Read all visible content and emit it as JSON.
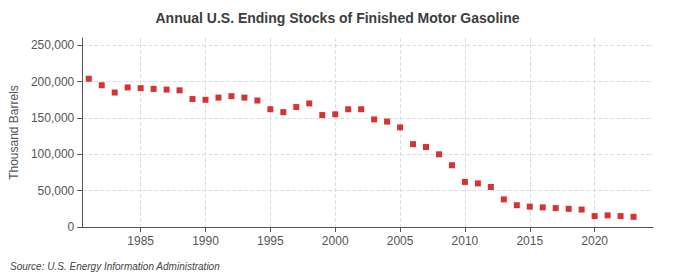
{
  "chart_data": {
    "type": "scatter",
    "title": "Annual U.S. Ending Stocks of Finished Motor Gasoline",
    "ylabel": "Thousand Barrels",
    "annotation": "Source: U.S. Energy Information Administration",
    "x": [
      1981,
      1982,
      1983,
      1984,
      1985,
      1986,
      1987,
      1988,
      1989,
      1990,
      1991,
      1992,
      1993,
      1994,
      1995,
      1996,
      1997,
      1998,
      1999,
      2000,
      2001,
      2002,
      2003,
      2004,
      2005,
      2006,
      2007,
      2008,
      2009,
      2010,
      2011,
      2012,
      2013,
      2014,
      2015,
      2016,
      2017,
      2018,
      2019,
      2020,
      2021,
      2022,
      2023
    ],
    "values": [
      204000,
      195000,
      185000,
      192000,
      191000,
      190000,
      189000,
      188000,
      176000,
      175000,
      178000,
      180000,
      178000,
      174000,
      162000,
      158000,
      165000,
      170000,
      154000,
      155000,
      162000,
      162000,
      148000,
      145000,
      137000,
      114000,
      110000,
      100000,
      85000,
      62000,
      60000,
      55000,
      38000,
      30000,
      28000,
      27000,
      26000,
      25000,
      24000,
      15000,
      16000,
      15000,
      14000
    ],
    "color": "#cc0000",
    "marker": "square",
    "xlim": [
      1980.5,
      2024.5
    ],
    "xticks": [
      1985,
      1990,
      1995,
      2000,
      2005,
      2010,
      2015,
      2020
    ],
    "ylim": [
      0,
      260000
    ],
    "yticks": [
      0,
      {
        "value": 50000,
        "label": "50,000"
      },
      {
        "value": 100000,
        "label": "100,000"
      },
      {
        "value": 150000,
        "label": "150,000"
      },
      {
        "value": 200000,
        "label": "200,000"
      },
      {
        "value": 250000,
        "label": "250,000"
      }
    ],
    "grid": true
  }
}
